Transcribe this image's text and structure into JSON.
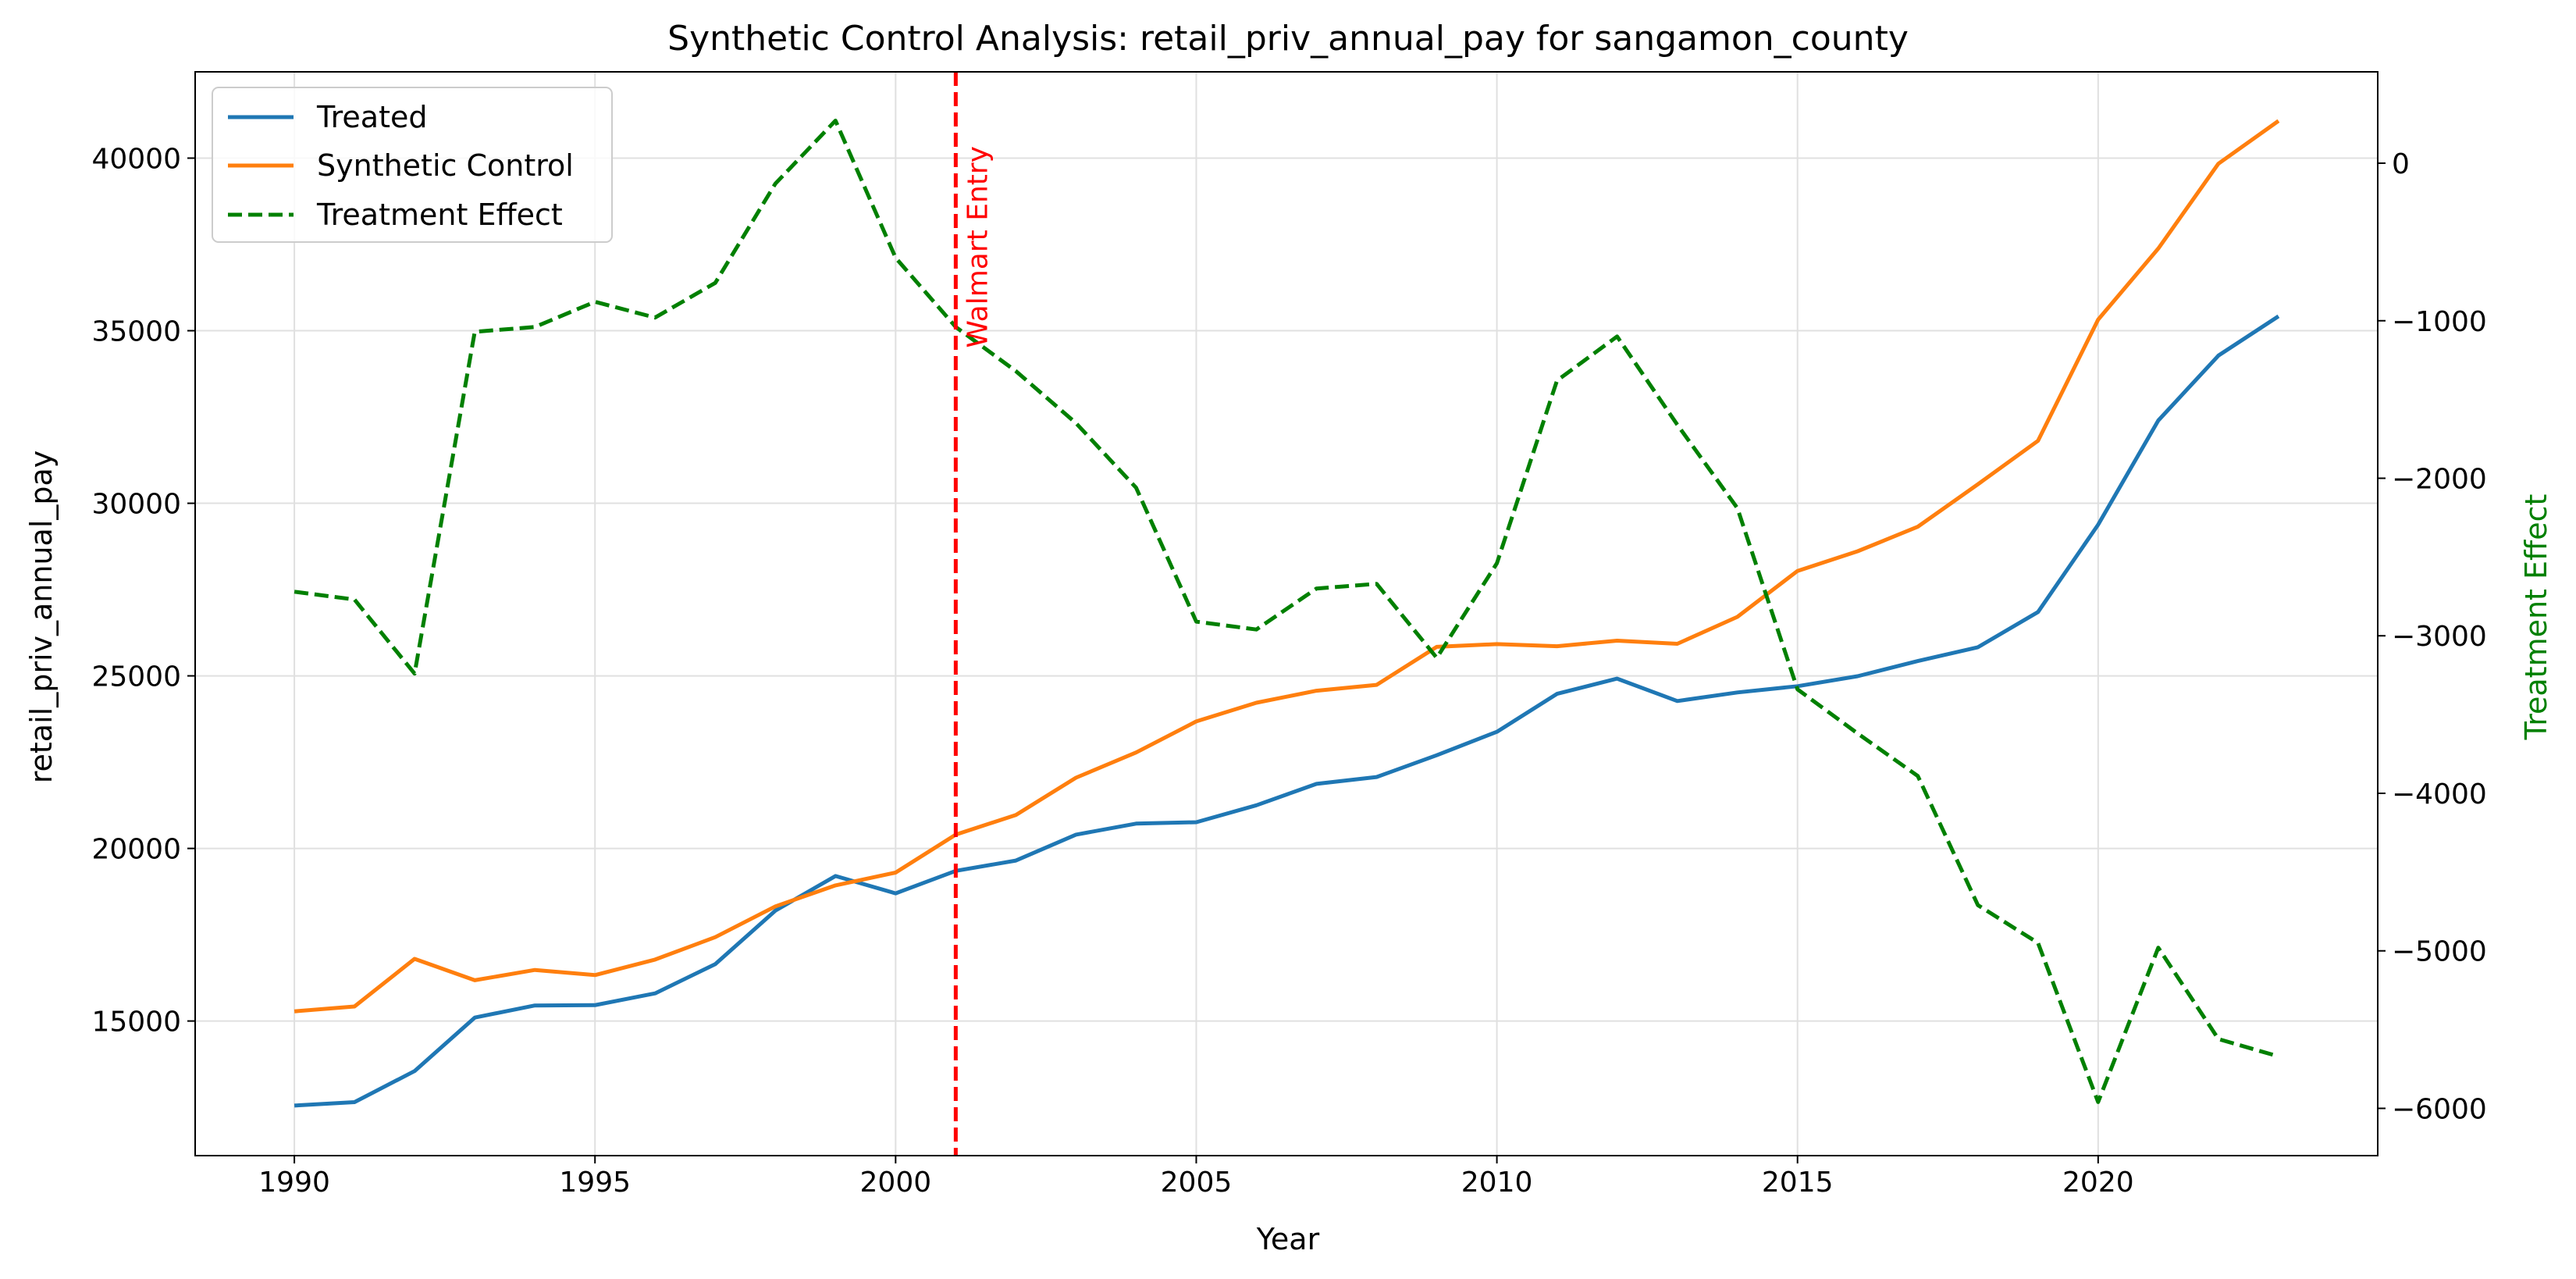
{
  "chart_data": {
    "type": "line",
    "title": "Synthetic Control Analysis: retail_priv_annual_pay for sangamon_county",
    "xlabel": "Year",
    "ylabel": "retail_priv_annual_pay",
    "y2label": "Treatment Effect",
    "xlim": [
      1988.35,
      2024.65
    ],
    "ylim": [
      11100,
      42500
    ],
    "y2lim": [
      -6300,
      580
    ],
    "grid": true,
    "legend_position": "upper-left",
    "x_ticks": [
      1990,
      1995,
      2000,
      2005,
      2010,
      2015,
      2020
    ],
    "y_ticks": [
      15000,
      20000,
      25000,
      30000,
      35000,
      40000
    ],
    "y2_ticks": [
      0,
      -1000,
      -2000,
      -3000,
      -4000,
      -5000,
      -6000
    ],
    "x_tick_labels": [
      "1990",
      "1995",
      "2000",
      "2005",
      "2010",
      "2015",
      "2020"
    ],
    "y_tick_labels": [
      "15000",
      "20000",
      "25000",
      "30000",
      "35000",
      "40000"
    ],
    "y2_tick_labels": [
      "0",
      "−1000",
      "−2000",
      "−3000",
      "−4000",
      "−5000",
      "−6000"
    ],
    "x": [
      1990,
      1991,
      1992,
      1993,
      1994,
      1995,
      1996,
      1997,
      1998,
      1999,
      2000,
      2001,
      2002,
      2003,
      2004,
      2005,
      2006,
      2007,
      2008,
      2009,
      2010,
      2011,
      2012,
      2013,
      2014,
      2015,
      2016,
      2017,
      2018,
      2019,
      2020,
      2021,
      2022,
      2023
    ],
    "series": [
      {
        "name": "Treated",
        "axis": "left",
        "color": "#1f77b4",
        "style": "solid",
        "values": [
          12550,
          12650,
          13550,
          15100,
          15450,
          15460,
          15800,
          16650,
          18200,
          19200,
          18700,
          19350,
          19650,
          20400,
          20720,
          20760,
          21250,
          21870,
          22070,
          22700,
          23380,
          24480,
          24920,
          24270,
          24520,
          24700,
          24990,
          25430,
          25830,
          26850,
          29380,
          32400,
          34280,
          35420
        ]
      },
      {
        "name": "Synthetic Control",
        "axis": "left",
        "color": "#ff7f0e",
        "style": "solid",
        "values": [
          15280,
          15420,
          16800,
          16180,
          16480,
          16330,
          16780,
          17430,
          18320,
          18930,
          19300,
          20400,
          20970,
          22050,
          22780,
          23680,
          24220,
          24570,
          24740,
          25840,
          25920,
          25860,
          26020,
          25930,
          26710,
          28040,
          28610,
          29320,
          30550,
          31810,
          35320,
          37380,
          39840,
          41080
        ]
      },
      {
        "name": "Treatment Effect",
        "axis": "right",
        "color": "#008000",
        "style": "dashed",
        "values": [
          -2720,
          -2770,
          -3240,
          -1070,
          -1040,
          -880,
          -980,
          -760,
          -130,
          270,
          -600,
          -1040,
          -1320,
          -1650,
          -2060,
          -2910,
          -2960,
          -2700,
          -2670,
          -3140,
          -2540,
          -1380,
          -1100,
          -1660,
          -2190,
          -3340,
          -3620,
          -3890,
          -4710,
          -4950,
          -5960,
          -4980,
          -5560,
          -5670
        ]
      }
    ],
    "annotations": [
      {
        "type": "vline",
        "x": 2001,
        "color": "#ff0000",
        "style": "dashed",
        "label": "Walmart Entry"
      }
    ]
  }
}
